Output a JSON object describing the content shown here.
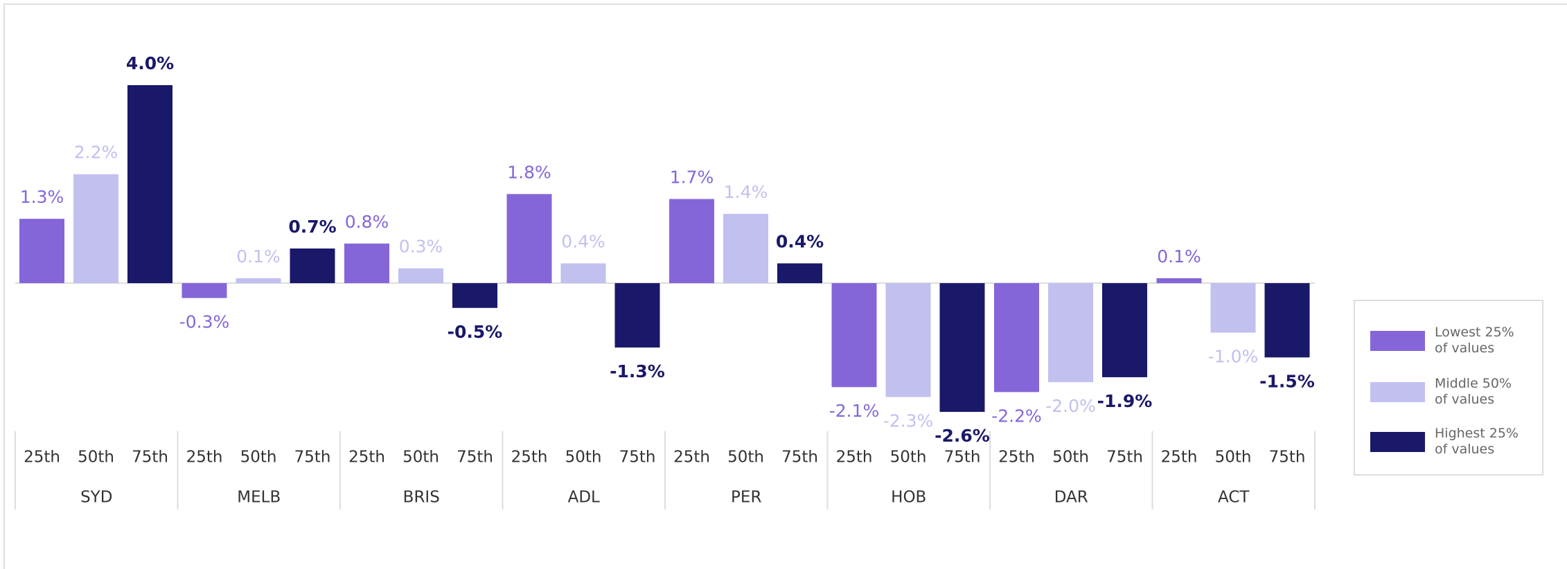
{
  "chart_data": {
    "type": "bar",
    "categories": [
      "SYD",
      "MELB",
      "BRIS",
      "ADL",
      "PER",
      "HOB",
      "DAR",
      "ACT"
    ],
    "sublabels": [
      "25th",
      "50th",
      "75th"
    ],
    "series": [
      {
        "name": "Lowest 25% of values",
        "color": "#8466d9",
        "values": [
          1.3,
          -0.3,
          0.8,
          1.8,
          1.7,
          -2.1,
          -2.2,
          0.1
        ],
        "value_labels": [
          "1.3%",
          "-0.3%",
          "0.8%",
          "1.8%",
          "1.7%",
          "-2.1%",
          "-2.2%",
          "0.1%"
        ]
      },
      {
        "name": "Middle 50% of values",
        "color": "#c2c0ef",
        "values": [
          2.2,
          0.1,
          0.3,
          0.4,
          1.4,
          -2.3,
          -2.0,
          -1.0
        ],
        "value_labels": [
          "2.2%",
          "0.1%",
          "0.3%",
          "0.4%",
          "1.4%",
          "-2.3%",
          "-2.0%",
          "-1.0%"
        ]
      },
      {
        "name": "Highest 25% of values",
        "color": "#1a1869",
        "values": [
          4.0,
          0.7,
          -0.5,
          -1.3,
          0.4,
          -2.6,
          -1.9,
          -1.5
        ],
        "value_labels": [
          "4.0%",
          "0.7%",
          "-0.5%",
          "-1.3%",
          "0.4%",
          "-2.6%",
          "-1.9%",
          "-1.5%"
        ]
      }
    ],
    "legend": "right"
  }
}
